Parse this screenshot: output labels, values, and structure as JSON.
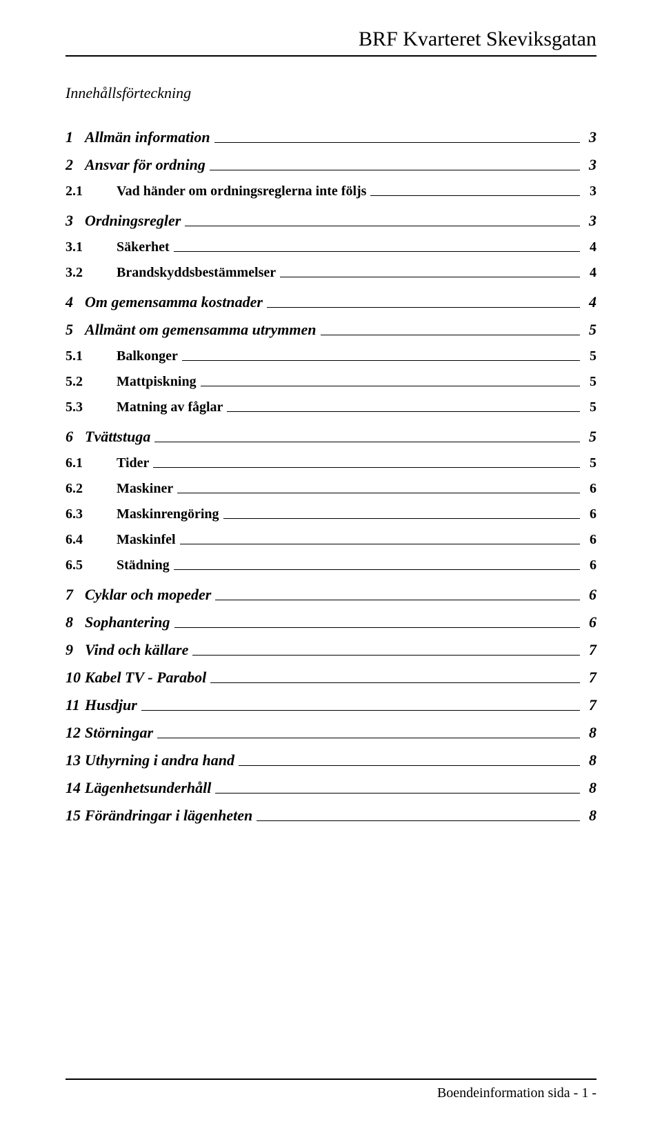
{
  "header_title": "BRF Kvarteret Skeviksgatan",
  "toc_heading": "Innehållsförteckning",
  "footer_text": "Boendeinformation sida - 1 -",
  "entries": [
    {
      "level": 1,
      "num": "1",
      "label": "Allmän information",
      "page": "3"
    },
    {
      "level": 1,
      "num": "2",
      "label": "Ansvar för ordning",
      "page": "3"
    },
    {
      "level": 2,
      "num": "2.1",
      "label": "Vad händer om ordningsreglerna inte följs",
      "page": "3"
    },
    {
      "level": 1,
      "num": "3",
      "label": "Ordningsregler",
      "page": "3"
    },
    {
      "level": 2,
      "num": "3.1",
      "label": "Säkerhet",
      "page": "4"
    },
    {
      "level": 2,
      "num": "3.2",
      "label": "Brandskyddsbestämmelser",
      "page": "4"
    },
    {
      "level": 1,
      "num": "4",
      "label": "Om gemensamma kostnader",
      "page": "4"
    },
    {
      "level": 1,
      "num": "5",
      "label": "Allmänt om gemensamma utrymmen",
      "page": "5"
    },
    {
      "level": 2,
      "num": "5.1",
      "label": "Balkonger",
      "page": "5"
    },
    {
      "level": 2,
      "num": "5.2",
      "label": "Mattpiskning",
      "page": "5"
    },
    {
      "level": 2,
      "num": "5.3",
      "label": "Matning av fåglar",
      "page": "5"
    },
    {
      "level": 1,
      "num": "6",
      "label": "Tvättstuga",
      "page": "5"
    },
    {
      "level": 2,
      "num": "6.1",
      "label": "Tider",
      "page": "5"
    },
    {
      "level": 2,
      "num": "6.2",
      "label": "Maskiner",
      "page": "6"
    },
    {
      "level": 2,
      "num": "6.3",
      "label": "Maskinrengöring",
      "page": "6"
    },
    {
      "level": 2,
      "num": "6.4",
      "label": "Maskinfel",
      "page": "6"
    },
    {
      "level": 2,
      "num": "6.5",
      "label": "Städning",
      "page": "6"
    },
    {
      "level": 1,
      "num": "7",
      "label": "Cyklar och mopeder",
      "page": "6"
    },
    {
      "level": 1,
      "num": "8",
      "label": "Sophantering",
      "page": "6"
    },
    {
      "level": 1,
      "num": "9",
      "label": "Vind och källare",
      "page": "7"
    },
    {
      "level": 1,
      "num": "10",
      "label": "Kabel TV - Parabol",
      "page": "7"
    },
    {
      "level": 1,
      "num": "11",
      "label": "Husdjur",
      "page": "7"
    },
    {
      "level": 1,
      "num": "12",
      "label": "Störningar",
      "page": "8"
    },
    {
      "level": 1,
      "num": "13",
      "label": "Uthyrning i andra hand",
      "page": "8"
    },
    {
      "level": 1,
      "num": "14",
      "label": "Lägenhetsunderhåll",
      "page": "8"
    },
    {
      "level": 1,
      "num": "15",
      "label": "Förändringar i lägenheten",
      "page": "8"
    }
  ]
}
